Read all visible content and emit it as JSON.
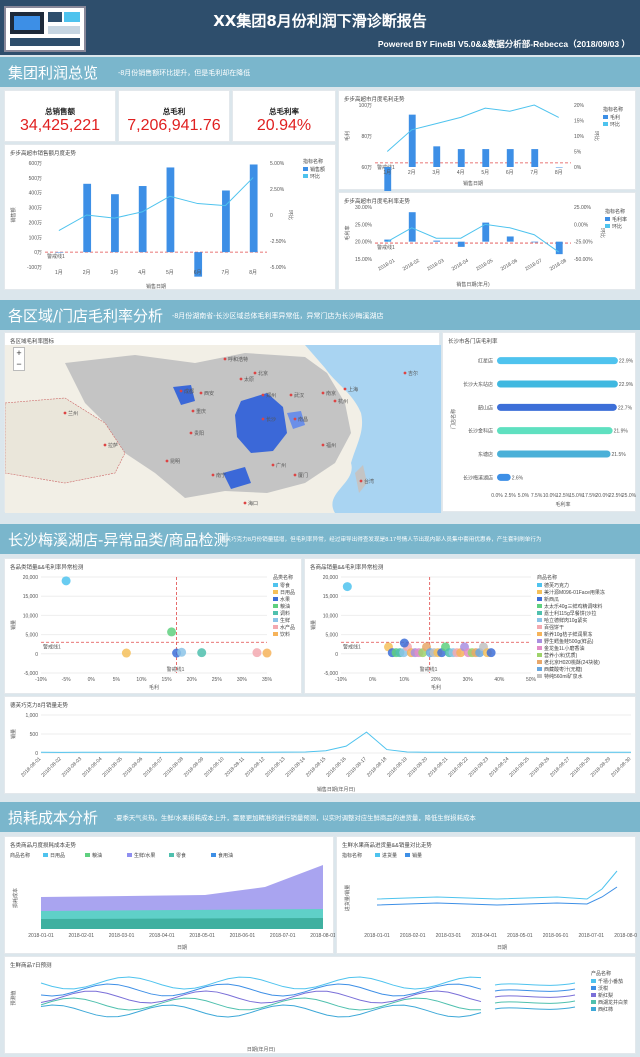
{
  "header": {
    "title": "XX集团8月份利润下滑诊断报告",
    "subtitle": "Powered BY FineBI V5.0&&数据分析部-Rebecca（2018/09/03 ）"
  },
  "sections": [
    {
      "title": "集团利润总览",
      "desc": "-8月份销售额环比提升，但是毛利却在降低"
    },
    {
      "title": "各区域/门店毛利率分析",
      "desc": "-8月份湖南省-长沙区域总体毛利率异常低，异常门店为长沙梅溪湖店"
    },
    {
      "title": "长沙梅溪湖店-异常品类/商品检测",
      "desc": "-德芙巧克力8月份销量猛增，但毛利率异常，经过审导出得查发现是8.17号情人节出现内部人员集中套用优惠券，产生套利刷单行为"
    },
    {
      "title": "损耗成本分析",
      "desc": "-夏季天气炎热，生鲜/水果损耗成本上升，需要更加精准的进行销量预测，以实时调整对应生鲜商品的进货量，降低生鲜损耗成本"
    }
  ],
  "kpis": [
    {
      "label": "总销售额",
      "value": "34,425,221"
    },
    {
      "label": "总毛利",
      "value": "7,206,941.76"
    },
    {
      "label": "总毛利率",
      "value": "20.94%"
    }
  ],
  "colors": {
    "bar": "#3d8fe6",
    "line": "#4ec3ee",
    "warn": "#e04848",
    "accent": "#e02020"
  },
  "common": {
    "legend_title": "指标名称",
    "warn": "警戒线1",
    "x_date": "销售日期",
    "x_month": "销售日期(年月)",
    "rate_label": "毛利率",
    "huan": "环比"
  },
  "chart_sales": {
    "title": "步步高超市销售额月度走势",
    "ylabel": "销售额",
    "legend": [
      "销售额",
      "环比"
    ],
    "categories": [
      "1月",
      "2月",
      "3月",
      "4月",
      "5月",
      "6月",
      "7月",
      "8月"
    ],
    "values": [
      0,
      460,
      390,
      445,
      570,
      -165,
      415,
      590
    ],
    "growth": [
      -1.5,
      0,
      -0.3,
      0.3,
      1.8,
      1.1,
      0.9,
      3.6
    ],
    "ylim": [
      -100,
      600
    ],
    "ylim_right": [
      -5,
      5
    ],
    "yticks": [
      "600万",
      "500万",
      "400万",
      "300万",
      "200万",
      "100万",
      "0万",
      "-100万"
    ],
    "yticks_right": [
      "5.00%",
      "2.50%",
      "0",
      "-2.50%",
      "-5.00%"
    ]
  },
  "chart_profit": {
    "title": "步步高超市月度毛利走势",
    "ylabel": "毛利",
    "legend": [
      "毛利",
      "环比"
    ],
    "categories": [
      "1月",
      "2月",
      "3月",
      "4月",
      "5月",
      "6月",
      "7月",
      "8月"
    ],
    "values": [
      0,
      93,
      70,
      68,
      68,
      68,
      68,
      55
    ],
    "growth": [
      5,
      12,
      14,
      16,
      19,
      18,
      20,
      16
    ],
    "yticks": [
      "100万",
      "80万",
      "60万"
    ],
    "yticks_right": [
      "20%",
      "15%",
      "10%",
      "5%",
      "0%"
    ]
  },
  "chart_rate": {
    "title": "步步高超市月度毛利率走势",
    "ylabel": "毛利率",
    "legend": [
      "毛利率",
      "环比"
    ],
    "categories": [
      "2018-01",
      "2018-02",
      "2018-03",
      "2018-04",
      "2018-05",
      "2018-06",
      "2018-07",
      "2018-08"
    ],
    "values": [
      20.6,
      28.5,
      20.3,
      18.5,
      25.5,
      21.5,
      19.8,
      16.4
    ],
    "growth": [
      0,
      0.4,
      0.1,
      0.1,
      0.5,
      0.4,
      0.2,
      -0.3
    ],
    "yticks": [
      "30.00%",
      "25.00%",
      "20.00%",
      "15.00%"
    ],
    "yticks_right": [
      "25.00%",
      "0.00%",
      "-25.00%",
      "-50.00%"
    ]
  },
  "map": {
    "title": "各区域毛利率图标",
    "labels": [
      "北京",
      "兰州",
      "呼和浩特",
      "太原",
      "郑州",
      "西安",
      "武汉",
      "成都",
      "重庆",
      "贵阳",
      "昆明",
      "长沙",
      "南昌",
      "杭州",
      "上海",
      "南京",
      "福州",
      "广州",
      "厦门",
      "台湾",
      "吉尔",
      "拉萨",
      "南宁",
      "海口"
    ]
  },
  "chart_store": {
    "title": "长沙市各门店毛利率",
    "xlabel": "毛利率",
    "ylabel": "门店名称",
    "stores": [
      {
        "name": "红星店",
        "value": 22.9
      },
      {
        "name": "长沙大东站店",
        "value": 22.9
      },
      {
        "name": "韶山店",
        "value": 22.7
      },
      {
        "name": "长沙金科店",
        "value": 21.9
      },
      {
        "name": "东塘店",
        "value": 21.5
      },
      {
        "name": "长沙梅溪湖店",
        "value": 2.6
      }
    ],
    "xticks": [
      "0.0%",
      "2.5%",
      "5.0%",
      "7.5%",
      "10.0%",
      "12.5%",
      "15.0%",
      "17.5%",
      "20.0%",
      "22.5%",
      "25.0%"
    ]
  },
  "chart_cat_scatter": {
    "title": "各品类销量&&毛利率异常检测",
    "legend_title": "品类名称",
    "ylabel": "销量",
    "xlabel": "毛利",
    "categories": [
      {
        "name": "零食",
        "color": "#4fc3ee",
        "x": -5,
        "y": 19000
      },
      {
        "name": "日用品",
        "color": "#f5c05a",
        "x": 7,
        "y": 200
      },
      {
        "name": "水果",
        "color": "#3d6fd8",
        "x": 17,
        "y": 200
      },
      {
        "name": "粮油",
        "color": "#5fd07f",
        "x": 16,
        "y": 5700
      },
      {
        "name": "调料",
        "color": "#4fc0ae",
        "x": 22,
        "y": 300
      },
      {
        "name": "生鲜",
        "color": "#8cc4e8",
        "x": 18,
        "y": 400
      },
      {
        "name": "水产品",
        "color": "#f3a9b0",
        "x": 33,
        "y": 300
      },
      {
        "name": "饮料",
        "color": "#f6b35a",
        "x": 35,
        "y": 200
      }
    ],
    "yticks": [
      "20,000",
      "15,000",
      "10,000",
      "5,000",
      "0",
      "-5,000"
    ],
    "xticks": [
      "-10%",
      "-5%",
      "0%",
      "5%",
      "10%",
      "15%",
      "20%",
      "25%",
      "30%",
      "35%"
    ]
  },
  "chart_item_scatter": {
    "title": "各商品销量&&毛利率异常检测",
    "legend_title": "商品名称",
    "ylabel": "销量",
    "xlabel": "毛利",
    "items": [
      "德芙巧克力",
      "美汁源M096-01Face用果冻",
      "新西瓜",
      "太太乐40g三鲜鸡精调味料",
      "嘉士利115g早餐饼(沙拉",
      "哈立德鲜肉10g紧实",
      "百强饼干",
      "新养10g桔子鲜润果冻",
      "野生鳕鱼鲑500g(鲜品)",
      "金龙鱼1L小磨香油",
      "营养小米(优质)",
      "老北京H020桃酥(24块装)",
      "西藏酸枣汁(无糖)",
      "特纯560ml矿泉水"
    ],
    "colors": [
      "#4fc3ee",
      "#f5c05a",
      "#3d6fd8",
      "#5fd07f",
      "#4fc0ae",
      "#8cc4e8",
      "#f3a9b0",
      "#f6b35a",
      "#a98fe0",
      "#e28cc8",
      "#9ed36a",
      "#e8a76a",
      "#6aa8e0",
      "#c1c1c1"
    ],
    "yticks": [
      "20,000",
      "15,000",
      "10,000",
      "5,000",
      "0",
      "-5,000"
    ],
    "xticks": [
      "-10%",
      "0%",
      "10%",
      "20%",
      "30%",
      "40%",
      "50%"
    ]
  },
  "chart_daily": {
    "title": "德芙巧克力8月销量走势",
    "ylabel": "销量",
    "xlabel": "销售日期(年月日)",
    "dates": [
      "2018-08-01",
      "2018-08-02",
      "2018-08-03",
      "2018-08-04",
      "2018-08-05",
      "2018-08-06",
      "2018-08-07",
      "2018-08-08",
      "2018-08-09",
      "2018-08-10",
      "2018-08-11",
      "2018-08-12",
      "2018-08-13",
      "2018-08-14",
      "2018-08-15",
      "2018-08-16",
      "2018-08-17",
      "2018-08-18",
      "2018-08-19",
      "2018-08-20",
      "2018-08-21",
      "2018-08-22",
      "2018-08-23",
      "2018-08-24",
      "2018-08-25",
      "2018-08-26",
      "2018-08-27",
      "2018-08-28",
      "2018-08-29",
      "2018-08-30"
    ],
    "values": [
      20,
      18,
      21,
      19,
      22,
      20,
      18,
      20,
      19,
      21,
      20,
      19,
      22,
      25,
      60,
      180,
      550,
      90,
      25,
      20,
      19,
      21,
      20,
      18,
      20,
      19,
      21,
      20,
      19,
      20
    ],
    "yticks": [
      "1,000",
      "500",
      "0"
    ]
  },
  "chart_loss": {
    "title": "各类商品月度损耗成本走势",
    "legend_title": "商品名称",
    "ylabel": "损耗成本",
    "xlabel": "日期",
    "legend": [
      "日用品",
      "粮油",
      "生鲜/水果",
      "零食",
      "食用油"
    ],
    "colors": [
      "#4fc3ee",
      "#5fd07f",
      "#8f8ff0",
      "#4fc0ae",
      "#3d8fe6"
    ],
    "xticks": [
      "2018-01-01",
      "2018-02-01",
      "2018-03-01",
      "2018-04-01",
      "2018-05-01",
      "2018-06-01",
      "2018-07-01",
      "2018-08-01"
    ]
  },
  "chart_fresh": {
    "title": "生鲜水果商品进货量&&销量对比走势",
    "legend_title": "指标名称",
    "legend": [
      "进货量",
      "销量"
    ],
    "ylabel": "进货量/销量",
    "xlabel": "日期",
    "xticks": [
      "2018-01-01",
      "2018-02-01",
      "2018-03-01",
      "2018-04-01",
      "2018-05-01",
      "2018-06-01",
      "2018-07-01",
      "2018-08-01"
    ]
  },
  "chart_fresh7": {
    "title": "生鲜商品7日预测",
    "legend_title": "产品名称",
    "ylabel": "预测值",
    "xlabel": "日期(年月日)",
    "legend": [
      "千禧小番茄",
      "沃柑",
      "新红梨",
      "西湖龙井白茶",
      "西红柿"
    ],
    "colors": [
      "#4fc3ee",
      "#3d8fe6",
      "#7a6fd8",
      "#4fc0ae",
      "#3da8d8"
    ]
  }
}
